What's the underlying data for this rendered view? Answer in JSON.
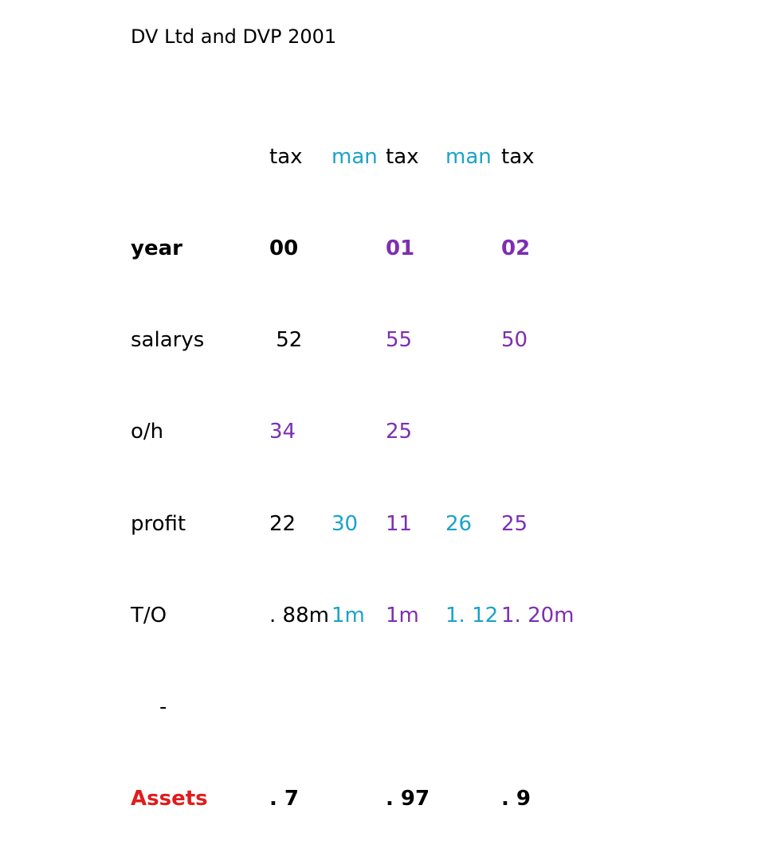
{
  "colors": {
    "black": "#000000",
    "tax": "#7d2eb2",
    "man": "#1aa3c8",
    "assets": "#e11c1c"
  },
  "title": "DV Ltd and DVP 2001",
  "labels": [
    "",
    "year",
    "salarys",
    "o/h",
    "profit",
    "T/O",
    "-",
    "Assets"
  ],
  "columns": [
    {
      "cells": [
        "tax",
        "00",
        " 52",
        "34",
        "22",
        ". 88m",
        "",
        ". 7"
      ]
    },
    {
      "cells": [
        "man",
        "",
        "",
        "",
        "30",
        "1m",
        "",
        ""
      ]
    },
    {
      "cells": [
        "tax",
        "01",
        "55",
        "25",
        "11",
        "1m",
        "",
        ". 97"
      ]
    },
    {
      "cells": [
        "man",
        "",
        "",
        "",
        "26",
        "1. 12",
        "",
        ""
      ]
    },
    {
      "cells": [
        "tax",
        "02",
        "50",
        "",
        "25",
        "1. 20m",
        "",
        ". 9"
      ]
    }
  ]
}
